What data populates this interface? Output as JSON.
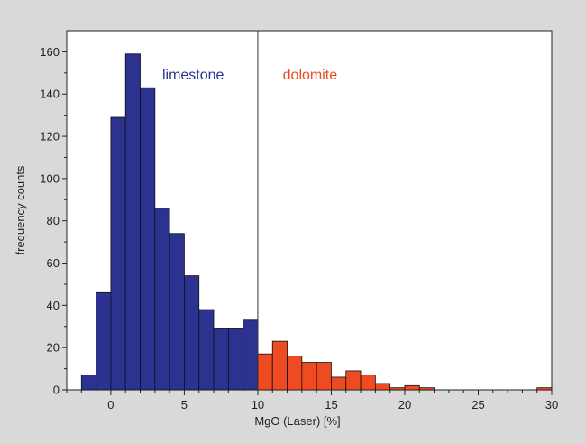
{
  "chart_data": {
    "type": "bar",
    "xlabel": "MgO (Laser) [%]",
    "ylabel": "frequency counts",
    "xlim": [
      -3,
      30
    ],
    "ylim": [
      0,
      170
    ],
    "x_ticks": [
      0,
      5,
      10,
      15,
      20,
      25,
      30
    ],
    "y_ticks": [
      0,
      20,
      40,
      60,
      80,
      100,
      120,
      140,
      160
    ],
    "bin_width": 1,
    "divider_x": 10,
    "grid": false,
    "colors": {
      "limestone": "#2b3290",
      "dolomite": "#ee4b23",
      "outline": "#111111"
    },
    "annotations": [
      {
        "text": "limestone",
        "x": 3.5,
        "y": 147,
        "color": "#2b3290"
      },
      {
        "text": "dolomite",
        "x": 11.7,
        "y": 147,
        "color": "#ee4b23"
      }
    ],
    "series": [
      {
        "bins": [
          [
            -2,
            -1
          ],
          [
            -1,
            0
          ],
          [
            0,
            1
          ],
          [
            1,
            2
          ],
          [
            2,
            3
          ],
          [
            3,
            4
          ],
          [
            4,
            5
          ],
          [
            5,
            6
          ],
          [
            6,
            7
          ],
          [
            7,
            8
          ],
          [
            8,
            9
          ],
          [
            9,
            10
          ]
        ],
        "values": [
          7,
          46,
          129,
          159,
          143,
          86,
          74,
          54,
          38,
          29,
          29,
          33
        ]
      },
      {
        "bins": [
          [
            10,
            11
          ],
          [
            11,
            12
          ],
          [
            12,
            13
          ],
          [
            13,
            14
          ],
          [
            14,
            15
          ],
          [
            15,
            16
          ],
          [
            16,
            17
          ],
          [
            17,
            18
          ],
          [
            18,
            19
          ],
          [
            19,
            20
          ],
          [
            20,
            21
          ],
          [
            21,
            22
          ],
          [
            22,
            23
          ],
          [
            23,
            24
          ],
          [
            24,
            25
          ],
          [
            25,
            26
          ],
          [
            26,
            27
          ],
          [
            27,
            28
          ],
          [
            28,
            29
          ],
          [
            29,
            30
          ]
        ],
        "values": [
          17,
          23,
          16,
          13,
          13,
          6,
          9,
          7,
          3,
          1,
          2,
          1,
          0,
          0,
          0,
          0,
          0,
          0,
          0,
          1
        ]
      }
    ]
  }
}
